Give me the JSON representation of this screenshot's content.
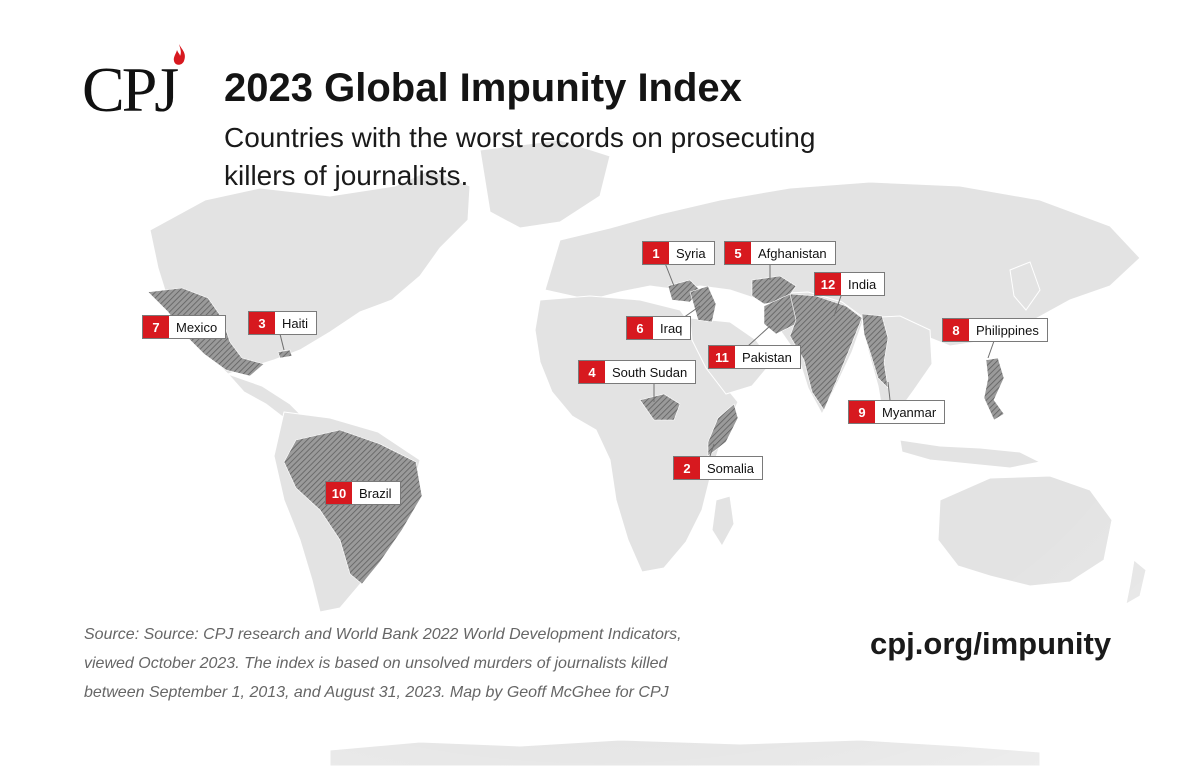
{
  "header": {
    "logo_text": "CPJ",
    "title": "2023 Global Impunity Index",
    "subtitle": "Countries with the worst records on prosecuting killers of journalists."
  },
  "footer": {
    "source": "Source: Source: CPJ research and World Bank 2022 World Development Indicators, viewed October 2023. The index is based on unsolved murders of journalists killed between September 1, 2013, and August 31, 2023. Map by Geoff McGhee for CPJ",
    "url": "cpj.org/impunity"
  },
  "colors": {
    "accent_red": "#d7191f",
    "land": "#e3e3e3",
    "highlighted_country": "#8a8a8a"
  },
  "countries": [
    {
      "rank": "1",
      "name": "Syria"
    },
    {
      "rank": "2",
      "name": "Somalia"
    },
    {
      "rank": "3",
      "name": "Haiti"
    },
    {
      "rank": "4",
      "name": "South Sudan"
    },
    {
      "rank": "5",
      "name": "Afghanistan"
    },
    {
      "rank": "6",
      "name": "Iraq"
    },
    {
      "rank": "7",
      "name": "Mexico"
    },
    {
      "rank": "8",
      "name": "Philippines"
    },
    {
      "rank": "9",
      "name": "Myanmar"
    },
    {
      "rank": "10",
      "name": "Brazil"
    },
    {
      "rank": "11",
      "name": "Pakistan"
    },
    {
      "rank": "12",
      "name": "India"
    }
  ]
}
